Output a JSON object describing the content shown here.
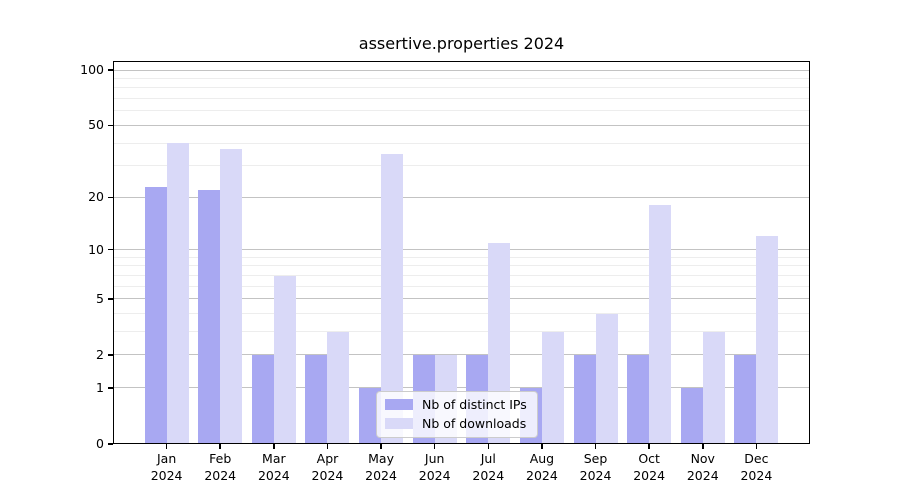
{
  "title": "assertive.properties 2024",
  "chart_data": {
    "type": "bar",
    "title": "assertive.properties 2024",
    "categories": [
      "Jan 2024",
      "Feb 2024",
      "Mar 2024",
      "Apr 2024",
      "May 2024",
      "Jun 2024",
      "Jul 2024",
      "Aug 2024",
      "Sep 2024",
      "Oct 2024",
      "Nov 2024",
      "Dec 2024"
    ],
    "series": [
      {
        "name": "Nb of distinct IPs",
        "color": "#a8a8f2",
        "values": [
          23,
          22,
          2,
          2,
          1,
          2,
          2,
          1,
          2,
          2,
          1,
          2
        ]
      },
      {
        "name": "Nb of downloads",
        "color": "#d9d9f8",
        "values": [
          40,
          37,
          7,
          3,
          35,
          2,
          11,
          3,
          4,
          18,
          3,
          12
        ]
      }
    ],
    "xlabel": "",
    "ylabel": "",
    "yscale": "log1p",
    "ylim": [
      0,
      112
    ],
    "yticks": [
      0,
      1,
      2,
      5,
      10,
      20,
      50,
      100
    ],
    "yticks_minor": [
      3,
      4,
      6,
      7,
      8,
      9,
      30,
      40,
      60,
      70,
      80,
      90
    ],
    "grid": true,
    "legend_position": "lower center"
  }
}
